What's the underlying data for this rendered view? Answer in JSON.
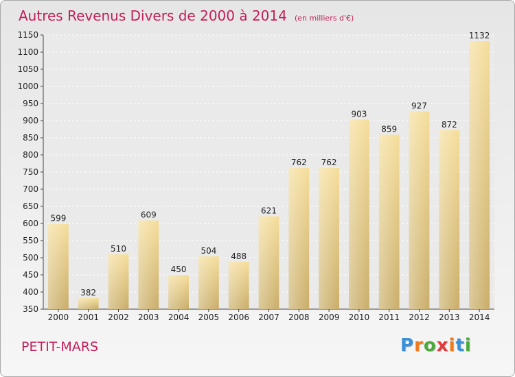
{
  "title": "Autres Revenus Divers de 2000 à 2014",
  "title_unit": "(en milliers d'€)",
  "commune": "PETIT-MARS",
  "logo": {
    "letters": [
      "P",
      "r",
      "o",
      "x",
      "i",
      "t",
      "i"
    ],
    "colors": [
      "#3a8fd6",
      "#f07a1a",
      "#4caa3a",
      "#e63a3a",
      "#f07a1a",
      "#3a8fd6",
      "#4caa3a"
    ]
  },
  "colors": {
    "accent": "#c21f5a",
    "bar_light": "#f5dd9a",
    "bar_dark": "#c9ad68"
  },
  "chart_data": {
    "type": "bar",
    "categories": [
      "2000",
      "2001",
      "2002",
      "2003",
      "2004",
      "2005",
      "2006",
      "2007",
      "2008",
      "2009",
      "2010",
      "2011",
      "2012",
      "2013",
      "2014"
    ],
    "values": [
      599,
      382,
      510,
      609,
      450,
      504,
      488,
      621,
      762,
      762,
      903,
      859,
      927,
      872,
      1132
    ],
    "ylim": [
      350,
      1150
    ],
    "yticks": [
      350,
      400,
      450,
      500,
      550,
      600,
      650,
      700,
      750,
      800,
      850,
      900,
      950,
      1000,
      1050,
      1100,
      1150
    ],
    "grid": true
  }
}
